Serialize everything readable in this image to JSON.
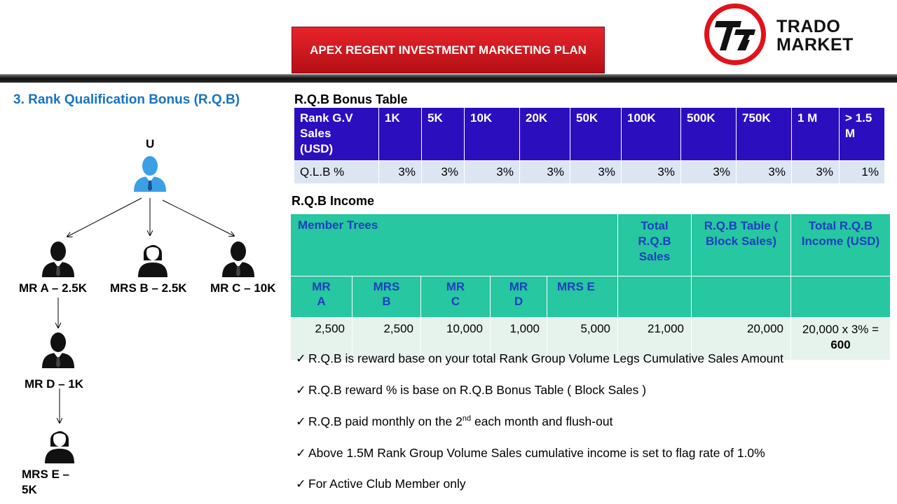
{
  "header": {
    "title": "APEX REGENT INVESTMENT MARKETING PLAN",
    "logo_line1": "TRADO",
    "logo_line2": "MARKET",
    "brand_color": "#e0131b"
  },
  "section": {
    "heading": "3. Rank Qualification  Bonus (R.Q.B)"
  },
  "tree": {
    "root": "U",
    "mr_a": "MR A – 2.5K",
    "mrs_b": "MRS B – 2.5K",
    "mr_c": "MR C – 10K",
    "mr_d": "MR D – 1K",
    "mrs_e_1": "MRS E –",
    "mrs_e_2": "5K"
  },
  "bonus_table": {
    "title": "R.Q.B Bonus Table",
    "header_color": "#2b0fbf",
    "row_label_h1": "Rank G.V",
    "row_label_h2": "Sales",
    "row_label_h3": "(USD)",
    "cols": [
      "1K",
      "5K",
      "10K",
      "20K",
      "50K",
      "100K",
      "500K",
      "750K",
      "1 M"
    ],
    "last_col_1": "> 1.5",
    "last_col_2": "M",
    "row_label_v": "Q.L.B %",
    "values": [
      "3%",
      "3%",
      "3%",
      "3%",
      "3%",
      "3%",
      "3%",
      "3%",
      "3%",
      "1%"
    ]
  },
  "income_table": {
    "title": "R.Q.B Income",
    "header_color": "#26c7a1",
    "member_trees": "Member Trees",
    "total_rqb_sales_1": "Total",
    "total_rqb_sales_2": "R.Q.B",
    "total_rqb_sales_3": "Sales",
    "rqb_table_1": "R.Q.B Table (",
    "rqb_table_2": "Block Sales)",
    "total_income_1": "Total R.Q.B",
    "total_income_2": "Income (USD)",
    "members": [
      {
        "l1": "MR",
        "l2": "A"
      },
      {
        "l1": "MRS",
        "l2": "B"
      },
      {
        "l1": "MR",
        "l2": "C"
      },
      {
        "l1": "MR",
        "l2": "D"
      },
      {
        "l1": "MRS E",
        "l2": ""
      }
    ],
    "values": [
      "2,500",
      "2,500",
      "10,000",
      "1,000",
      "5,000"
    ],
    "total_sales": "21,000",
    "block_sales": "20,000",
    "income_calc": "20,000 x 3% =",
    "income_result": "600"
  },
  "bullets": {
    "b1": "R.Q.B is reward base on your total Rank Group Volume Legs Cumulative Sales Amount",
    "b2": "R.Q.B reward % is base on R.Q.B Bonus Table ( Block Sales )",
    "b3_pre": "R.Q.B paid monthly on the 2",
    "b3_sup": "nd",
    "b3_post": " each month and flush-out",
    "b4": "Above 1.5M Rank Group Volume Sales cumulative income is set to flag rate of 1.0%",
    "b5": "For Active Club Member only",
    "check_glyph": "✓"
  }
}
